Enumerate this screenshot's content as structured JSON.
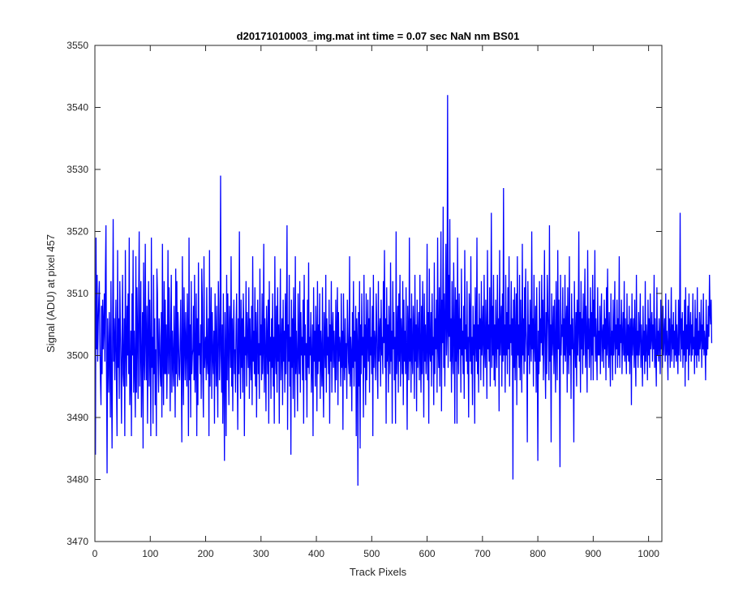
{
  "chart_data": {
    "type": "line",
    "title": "d20171010003_img.mat int time = 0.07 sec  NaN nm BS01",
    "xlabel": "Track Pixels",
    "ylabel": "Signal (ADU) at pixel 457",
    "xlim": [
      0,
      1024
    ],
    "ylim": [
      3470,
      3550
    ],
    "xticks": [
      0,
      100,
      200,
      300,
      400,
      500,
      600,
      700,
      800,
      900,
      1000
    ],
    "yticks": [
      3470,
      3480,
      3490,
      3500,
      3510,
      3520,
      3530,
      3540,
      3550
    ],
    "grid": false,
    "legend": "none",
    "line_color": "#0000ff",
    "axis_color": "#262626",
    "series": [
      {
        "x_start": 1,
        "x_step": 1,
        "values": [
          3484,
          3519,
          3501,
          3513,
          3499,
          3505,
          3509,
          3512,
          3502,
          3496,
          3492,
          3508,
          3497,
          3509,
          3501,
          3505,
          3510,
          3499,
          3513,
          3521,
          3497,
          3481,
          3506,
          3500,
          3494,
          3507,
          3501,
          3490,
          3512,
          3496,
          3485,
          3504,
          3522,
          3499,
          3506,
          3496,
          3503,
          3509,
          3495,
          3487,
          3517,
          3498,
          3506,
          3493,
          3512,
          3505,
          3499,
          3489,
          3501,
          3513,
          3497,
          3495,
          3506,
          3487,
          3517,
          3502,
          3495,
          3508,
          3500,
          3510,
          3497,
          3519,
          3492,
          3496,
          3504,
          3487,
          3510,
          3500,
          3517,
          3494,
          3504,
          3498,
          3490,
          3516,
          3494,
          3511,
          3504,
          3493,
          3509,
          3520,
          3495,
          3501,
          3512,
          3490,
          3498,
          3507,
          3485,
          3515,
          3500,
          3496,
          3518,
          3503,
          3496,
          3508,
          3489,
          3503,
          3512,
          3495,
          3509,
          3500,
          3487,
          3519,
          3498,
          3503,
          3489,
          3513,
          3497,
          3506,
          3492,
          3501,
          3487,
          3514,
          3510,
          3499,
          3494,
          3506,
          3503,
          3497,
          3495,
          3507,
          3490,
          3518,
          3500,
          3492,
          3512,
          3497,
          3509,
          3497,
          3505,
          3493,
          3501,
          3517,
          3497,
          3511,
          3502,
          3491,
          3505,
          3513,
          3494,
          3504,
          3499,
          3495,
          3508,
          3501,
          3490,
          3514,
          3497,
          3512,
          3495,
          3507,
          3503,
          3497,
          3496,
          3502,
          3509,
          3498,
          3486,
          3516,
          3499,
          3492,
          3511,
          3502,
          3496,
          3507,
          3501,
          3495,
          3510,
          3503,
          3487,
          3519,
          3496,
          3505,
          3490,
          3512,
          3497,
          3500,
          3501,
          3508,
          3496,
          3513,
          3494,
          3499,
          3510,
          3487,
          3506,
          3492,
          3515,
          3500,
          3502,
          3497,
          3505,
          3493,
          3514,
          3509,
          3496,
          3490,
          3516,
          3498,
          3501,
          3503,
          3496,
          3511,
          3499,
          3497,
          3506,
          3487,
          3517,
          3495,
          3503,
          3511,
          3493,
          3507,
          3500,
          3497,
          3504,
          3489,
          3510,
          3502,
          3495,
          3508,
          3498,
          3490,
          3512,
          3506,
          3496,
          3501,
          3529,
          3500,
          3494,
          3505,
          3489,
          3510,
          3497,
          3483,
          3507,
          3500,
          3487,
          3513,
          3496,
          3510,
          3502,
          3492,
          3508,
          3504,
          3498,
          3516,
          3495,
          3506,
          3491,
          3503,
          3509,
          3497,
          3501,
          3494,
          3505,
          3510,
          3499,
          3488,
          3506,
          3497,
          3520,
          3501,
          3493,
          3509,
          3498,
          3506,
          3494,
          3510,
          3504,
          3487,
          3503,
          3500,
          3512,
          3495,
          3507,
          3502,
          3498,
          3511,
          3493,
          3506,
          3500,
          3496,
          3508,
          3492,
          3516,
          3499,
          3504,
          3497,
          3511,
          3495,
          3507,
          3490,
          3503,
          3509,
          3497,
          3502,
          3493,
          3514,
          3500,
          3505,
          3496,
          3510,
          3497,
          3501,
          3518,
          3494,
          3506,
          3500,
          3491,
          3508,
          3502,
          3497,
          3509,
          3489,
          3512,
          3499,
          3503,
          3493,
          3506,
          3498,
          3510,
          3495,
          3503,
          3489,
          3516,
          3501,
          3497,
          3508,
          3494,
          3511,
          3499,
          3505,
          3489,
          3503,
          3514,
          3496,
          3501,
          3506,
          3492,
          3509,
          3499,
          3504,
          3494,
          3510,
          3497,
          3506,
          3521,
          3488,
          3505,
          3499,
          3513,
          3495,
          3503,
          3484,
          3509,
          3498,
          3506,
          3493,
          3511,
          3502,
          3490,
          3516,
          3497,
          3504,
          3499,
          3491,
          3510,
          3501,
          3497,
          3512,
          3494,
          3507,
          3500,
          3503,
          3496,
          3509,
          3489,
          3513,
          3500,
          3505,
          3496,
          3502,
          3490,
          3509,
          3498,
          3515,
          3497,
          3503,
          3500,
          3507,
          3494,
          3499,
          3505,
          3487,
          3511,
          3499,
          3504,
          3495,
          3508,
          3502,
          3491,
          3512,
          3497,
          3505,
          3499,
          3510,
          3493,
          3504,
          3500,
          3495,
          3511,
          3497,
          3490,
          3507,
          3502,
          3498,
          3513,
          3494,
          3506,
          3500,
          3503,
          3497,
          3509,
          3489,
          3505,
          3499,
          3512,
          3494,
          3503,
          3507,
          3498,
          3504,
          3500,
          3494,
          3509,
          3496,
          3504,
          3511,
          3492,
          3507,
          3499,
          3503,
          3501,
          3495,
          3510,
          3498,
          3504,
          3488,
          3510,
          3500,
          3496,
          3506,
          3498,
          3502,
          3493,
          3509,
          3504,
          3499,
          3497,
          3516,
          3495,
          3503,
          3500,
          3491,
          3507,
          3498,
          3512,
          3495,
          3504,
          3499,
          3508,
          3487,
          3506,
          3502,
          3479,
          3507,
          3495,
          3512,
          3485,
          3505,
          3497,
          3510,
          3500,
          3503,
          3490,
          3513,
          3498,
          3505,
          3492,
          3510,
          3496,
          3502,
          3509,
          3499,
          3506,
          3494,
          3511,
          3500,
          3503,
          3497,
          3508,
          3487,
          3513,
          3498,
          3504,
          3502,
          3496,
          3510,
          3505,
          3498,
          3493,
          3512,
          3499,
          3503,
          3506,
          3495,
          3509,
          3500,
          3503,
          3497,
          3512,
          3502,
          3517,
          3498,
          3506,
          3489,
          3511,
          3499,
          3505,
          3494,
          3508,
          3502,
          3497,
          3515,
          3499,
          3504,
          3489,
          3512,
          3501,
          3507,
          3496,
          3503,
          3489,
          3520,
          3497,
          3502,
          3508,
          3494,
          3510,
          3499,
          3513,
          3495,
          3506,
          3503,
          3497,
          3512,
          3492,
          3509,
          3499,
          3504,
          3497,
          3511,
          3500,
          3488,
          3508,
          3503,
          3496,
          3519,
          3499,
          3506,
          3494,
          3510,
          3500,
          3497,
          3508,
          3504,
          3493,
          3513,
          3499,
          3505,
          3491,
          3509,
          3498,
          3503,
          3507,
          3496,
          3513,
          3500,
          3494,
          3508,
          3497,
          3512,
          3503,
          3490,
          3510,
          3499,
          3505,
          3497,
          3501,
          3518,
          3496,
          3507,
          3489,
          3514,
          3501,
          3499,
          3507,
          3495,
          3510,
          3500,
          3503,
          3492,
          3515,
          3497,
          3506,
          3501,
          3509,
          3494,
          3519,
          3502,
          3498,
          3511,
          3495,
          3505,
          3520,
          3491,
          3509,
          3502,
          3524,
          3498,
          3510,
          3495,
          3506,
          3518,
          3500,
          3504,
          3542,
          3498,
          3513,
          3503,
          3522,
          3499,
          3506,
          3494,
          3512,
          3501,
          3497,
          3515,
          3504,
          3489,
          3511,
          3499,
          3509,
          3489,
          3519,
          3502,
          3497,
          3510,
          3501,
          3506,
          3494,
          3514,
          3500,
          3504,
          3497,
          3508,
          3493,
          3517,
          3501,
          3505,
          3499,
          3512,
          3497,
          3503,
          3490,
          3510,
          3506,
          3499,
          3516,
          3497,
          3503,
          3492,
          3508,
          3500,
          3505,
          3489,
          3511,
          3503,
          3499,
          3519,
          3497,
          3505,
          3494,
          3510,
          3501,
          3506,
          3496,
          3512,
          3500,
          3503,
          3508,
          3495,
          3513,
          3501,
          3498,
          3509,
          3503,
          3493,
          3517,
          3501,
          3505,
          3499,
          3511,
          3495,
          3504,
          3523,
          3498,
          3508,
          3500,
          3513,
          3496,
          3505,
          3495,
          3509,
          3502,
          3498,
          3513,
          3501,
          3506,
          3491,
          3517,
          3500,
          3504,
          3508,
          3495,
          3510,
          3499,
          3527,
          3500,
          3505,
          3494,
          3513,
          3500,
          3507,
          3497,
          3511,
          3501,
          3516,
          3495,
          3505,
          3502,
          3512,
          3500,
          3506,
          3480,
          3509,
          3498,
          3511,
          3496,
          3503,
          3510,
          3492,
          3516,
          3500,
          3505,
          3498,
          3513,
          3496,
          3509,
          3502,
          3494,
          3518,
          3500,
          3506,
          3497,
          3511,
          3499,
          3514,
          3504,
          3501,
          3486,
          3512,
          3500,
          3505,
          3497,
          3509,
          3503,
          3499,
          3520,
          3501,
          3506,
          3495,
          3513,
          3502,
          3499,
          3508,
          3494,
          3511,
          3500,
          3483,
          3504,
          3497,
          3512,
          3499,
          3506,
          3502,
          3513,
          3500,
          3509,
          3496,
          3504,
          3517,
          3500,
          3493,
          3507,
          3497,
          3513,
          3508,
          3503,
          3496,
          3521,
          3499,
          3505,
          3486,
          3510,
          3500,
          3503,
          3508,
          3497,
          3509,
          3501,
          3494,
          3512,
          3503,
          3496,
          3517,
          3501,
          3509,
          3499,
          3482,
          3513,
          3500,
          3505,
          3503,
          3511,
          3497,
          3506,
          3500,
          3513,
          3499,
          3504,
          3508,
          3494,
          3511,
          3502,
          3497,
          3516,
          3500,
          3505,
          3493,
          3510,
          3501,
          3506,
          3500,
          3486,
          3512,
          3503,
          3498,
          3507,
          3495,
          3509,
          3500,
          3504,
          3520,
          3499,
          3507,
          3494,
          3512,
          3501,
          3506,
          3497,
          3510,
          3500,
          3505,
          3514,
          3498,
          3508,
          3502,
          3494,
          3517,
          3501,
          3506,
          3498,
          3503,
          3511,
          3496,
          3507,
          3500,
          3513,
          3496,
          3509,
          3503,
          3517,
          3499,
          3506,
          3501,
          3496,
          3511,
          3500,
          3504,
          3500,
          3508,
          3497,
          3505,
          3510,
          3499,
          3503,
          3505,
          3498,
          3509,
          3501,
          3506,
          3496,
          3511,
          3500,
          3514,
          3502,
          3498,
          3507,
          3501,
          3495,
          3510,
          3500,
          3504,
          3496,
          3509,
          3500,
          3503,
          3512,
          3497,
          3505,
          3501,
          3509,
          3498,
          3506,
          3500,
          3516,
          3498,
          3505,
          3502,
          3509,
          3497,
          3503,
          3507,
          3500,
          3512,
          3499,
          3506,
          3501,
          3497,
          3510,
          3500,
          3505,
          3499,
          3508,
          3497,
          3504,
          3506,
          3492,
          3510,
          3500,
          3503,
          3506,
          3498,
          3509,
          3501,
          3495,
          3513,
          3500,
          3504,
          3498,
          3507,
          3500,
          3503,
          3510,
          3498,
          3505,
          3501,
          3495,
          3508,
          3500,
          3504,
          3497,
          3512,
          3499,
          3505,
          3502,
          3496,
          3509,
          3500,
          3506,
          3498,
          3510,
          3501,
          3503,
          3507,
          3499,
          3505,
          3501,
          3513,
          3498,
          3506,
          3500,
          3495,
          3511,
          3500,
          3504,
          3499,
          3506,
          3502,
          3497,
          3509,
          3501,
          3505,
          3498,
          3508,
          3500,
          3503,
          3506,
          3499,
          3510,
          3500,
          3504,
          3501,
          3496,
          3509,
          3500,
          3506,
          3498,
          3503,
          3511,
          3499,
          3505,
          3501,
          3507,
          3498,
          3504,
          3500,
          3509,
          3499,
          3505,
          3501,
          3497,
          3509,
          3500,
          3504,
          3523,
          3499,
          3506,
          3501,
          3507,
          3498,
          3504,
          3500,
          3509,
          3495,
          3511,
          3499,
          3505,
          3501,
          3508,
          3496,
          3510,
          3500,
          3503,
          3507,
          3499,
          3505,
          3500,
          3510,
          3501,
          3503,
          3497,
          3509,
          3500,
          3506,
          3498,
          3511,
          3500,
          3504,
          3499,
          3507,
          3501,
          3503,
          3509,
          3498,
          3505,
          3501,
          3510,
          3500,
          3504,
          3502,
          3496,
          3509,
          3500,
          3505,
          3501,
          3508,
          3503,
          3513,
          3507,
          3505,
          3509,
          3502
        ]
      }
    ]
  }
}
